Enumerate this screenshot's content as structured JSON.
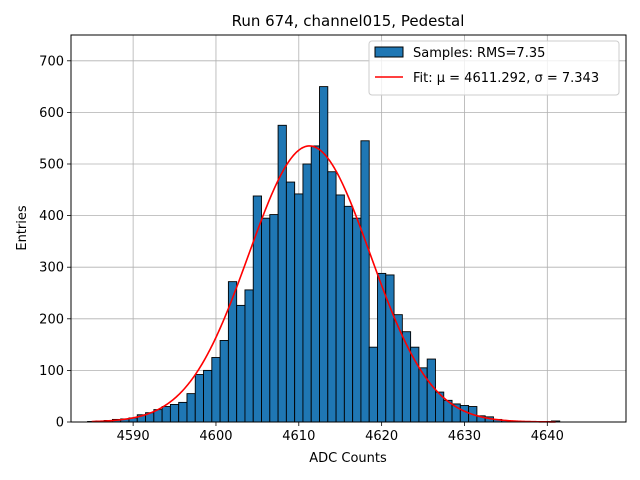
{
  "chart_data": {
    "type": "bar",
    "title": "Run 674, channel015, Pedestal",
    "xlabel": "ADC Counts",
    "ylabel": "Entries",
    "xlim": [
      4582.5,
      4649.5
    ],
    "ylim": [
      0,
      750
    ],
    "xticks": [
      4590,
      4600,
      4610,
      4620,
      4630,
      4640
    ],
    "yticks": [
      0,
      100,
      200,
      300,
      400,
      500,
      600,
      700
    ],
    "grid": true,
    "legend_position": "top-right",
    "bar_color": "#1f77b4",
    "fit_color": "#ff0000",
    "histogram": {
      "name": "Samples: RMS=7.35",
      "x": [
        4585,
        4586,
        4587,
        4588,
        4589,
        4590,
        4591,
        4592,
        4593,
        4594,
        4595,
        4596,
        4597,
        4598,
        4599,
        4600,
        4601,
        4602,
        4603,
        4604,
        4605,
        4606,
        4607,
        4608,
        4609,
        4610,
        4611,
        4612,
        4613,
        4614,
        4615,
        4616,
        4617,
        4618,
        4619,
        4620,
        4621,
        4622,
        4623,
        4624,
        4625,
        4626,
        4627,
        4628,
        4629,
        4630,
        4631,
        4632,
        4633,
        4634,
        4635,
        4636,
        4637,
        4638,
        4639,
        4640,
        4641
      ],
      "values": [
        1,
        2,
        3,
        5,
        6,
        8,
        14,
        18,
        24,
        30,
        34,
        38,
        55,
        92,
        100,
        125,
        158,
        272,
        226,
        256,
        438,
        395,
        402,
        575,
        465,
        442,
        500,
        535,
        650,
        485,
        440,
        418,
        395,
        545,
        145,
        288,
        285,
        208,
        175,
        145,
        105,
        122,
        58,
        42,
        35,
        32,
        30,
        12,
        10,
        5,
        3,
        2,
        1,
        1,
        0,
        1,
        2
      ]
    },
    "fit": {
      "name": "Fit: μ = 4611.292, σ = 7.343",
      "mu": 4611.292,
      "sigma": 7.343,
      "amplitude": 535,
      "x_range": [
        4585,
        4641
      ]
    }
  }
}
